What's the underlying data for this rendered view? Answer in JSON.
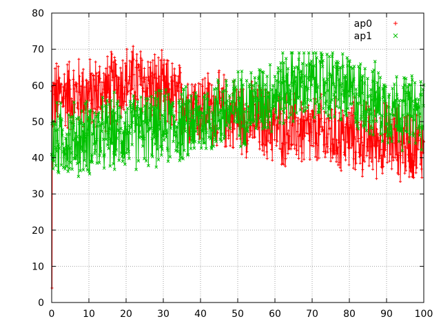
{
  "chart_data": {
    "type": "line",
    "title": "",
    "xlabel": "",
    "ylabel": "",
    "xlim": [
      0,
      100
    ],
    "ylim": [
      0,
      80
    ],
    "grid": true,
    "grid_style": "dotted",
    "legend_position": "top-right",
    "x_ticks": [
      "0",
      "10",
      "20",
      "30",
      "40",
      "50",
      "60",
      "70",
      "80",
      "90",
      "100"
    ],
    "y_ticks": [
      "0",
      "10",
      "20",
      "30",
      "40",
      "50",
      "60",
      "70",
      "80"
    ],
    "markers": {
      "ap0": "+",
      "ap1": "x"
    },
    "x": [
      0,
      2,
      4,
      6,
      8,
      10,
      12,
      14,
      16,
      18,
      20,
      22,
      24,
      26,
      28,
      30,
      32,
      34,
      36,
      38,
      40,
      42,
      44,
      46,
      48,
      50,
      52,
      54,
      56,
      58,
      60,
      62,
      64,
      66,
      68,
      70,
      72,
      74,
      76,
      78,
      80,
      82,
      84,
      86,
      88,
      90,
      92,
      94,
      96,
      98,
      100
    ],
    "series": [
      {
        "name": "ap0",
        "color": "#ff0000",
        "values": [
          56,
          57,
          58,
          57,
          58,
          57,
          58,
          58,
          59,
          60,
          61,
          61,
          61,
          60,
          59,
          58,
          57,
          56,
          55,
          55,
          54,
          54,
          53,
          53,
          52,
          52,
          51,
          50,
          50,
          49,
          49,
          48,
          48,
          48,
          47,
          47,
          47,
          46,
          46,
          46,
          46,
          46,
          45,
          45,
          45,
          45,
          45,
          44,
          44,
          44,
          44
        ],
        "range_min": 4,
        "range_max": 71
      },
      {
        "name": "ap1",
        "color": "#00c000",
        "values": [
          44,
          45,
          45,
          45,
          45,
          46,
          46,
          46,
          47,
          47,
          47,
          47,
          48,
          48,
          48,
          48,
          49,
          49,
          49,
          50,
          50,
          51,
          52,
          53,
          53,
          54,
          54,
          55,
          56,
          57,
          58,
          59,
          60,
          60,
          60,
          61,
          60,
          60,
          60,
          59,
          58,
          57,
          57,
          56,
          55,
          54,
          54,
          53,
          53,
          52,
          52
        ],
        "range_min": 32,
        "range_max": 69
      }
    ]
  }
}
